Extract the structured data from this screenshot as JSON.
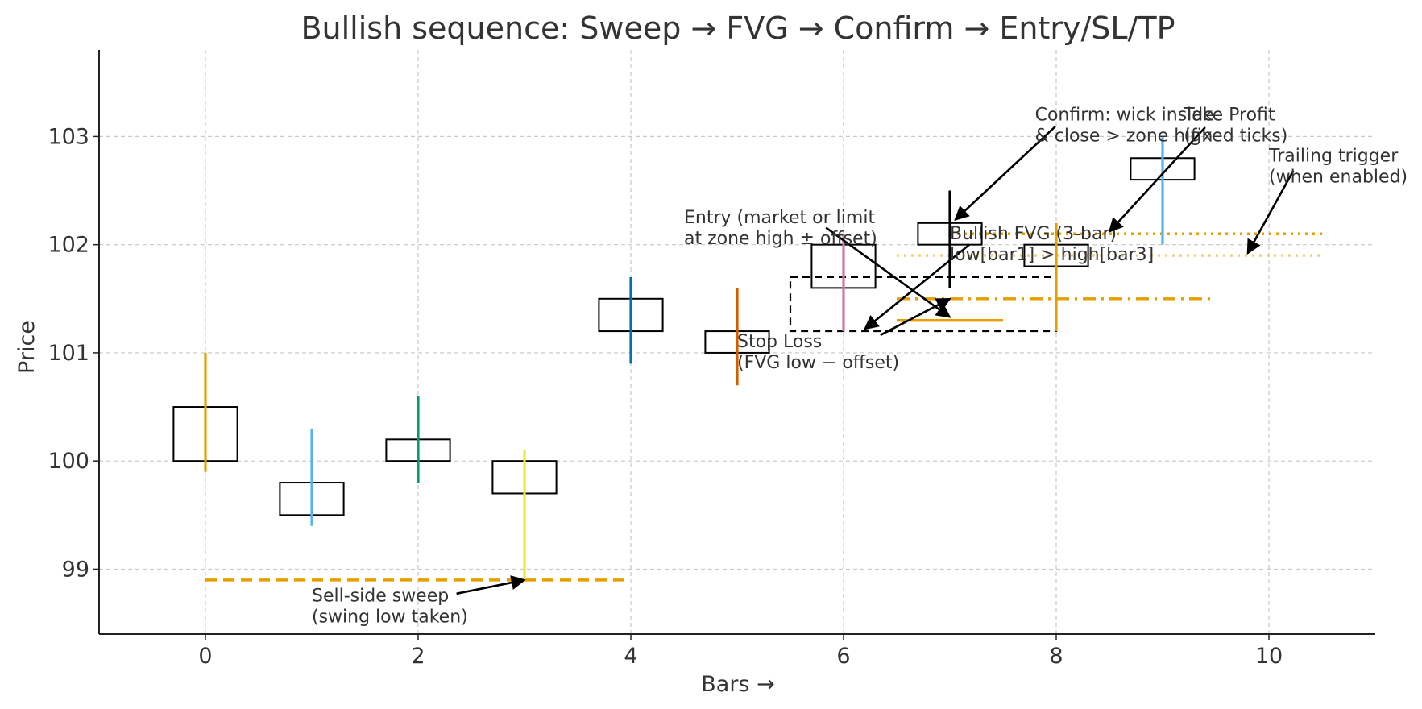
{
  "chart_data": {
    "type": "candlestick",
    "title": "Bullish sequence: Sweep → FVG → Confirm → Entry/SL/TP",
    "xlabel": "Bars →",
    "ylabel": "Price",
    "xlim": [
      -1,
      11
    ],
    "ylim": [
      98.4,
      103.8
    ],
    "xticks": [
      0,
      2,
      4,
      6,
      8,
      10
    ],
    "yticks": [
      99,
      100,
      101,
      102,
      103
    ],
    "grid": true,
    "candles": [
      {
        "x": 0,
        "open": 100.0,
        "close": 100.5,
        "low": 99.9,
        "high": 101.0,
        "wick_color": "#E69F00"
      },
      {
        "x": 1,
        "open": 99.5,
        "close": 99.8,
        "low": 99.4,
        "high": 100.3,
        "wick_color": "#56B4E9"
      },
      {
        "x": 2,
        "open": 100.0,
        "close": 100.2,
        "low": 99.8,
        "high": 100.6,
        "wick_color": "#009E73"
      },
      {
        "x": 3,
        "open": 100.0,
        "close": 99.7,
        "low": 98.9,
        "high": 100.1,
        "wick_color": "#F0E442"
      },
      {
        "x": 4,
        "open": 101.2,
        "close": 101.5,
        "low": 100.9,
        "high": 101.7,
        "wick_color": "#0072B2"
      },
      {
        "x": 5,
        "open": 101.0,
        "close": 101.2,
        "low": 100.7,
        "high": 101.6,
        "wick_color": "#D55E00"
      },
      {
        "x": 6,
        "open": 101.6,
        "close": 102.0,
        "low": 101.2,
        "high": 102.1,
        "wick_color": "#CC79A7"
      },
      {
        "x": 7,
        "open": 102.0,
        "close": 102.2,
        "low": 101.6,
        "high": 102.5,
        "wick_color": "#000000"
      },
      {
        "x": 8,
        "open": 101.8,
        "close": 102.0,
        "low": 101.2,
        "high": 102.2,
        "wick_color": "#E69F00"
      },
      {
        "x": 9,
        "open": 102.6,
        "close": 102.8,
        "low": 102.0,
        "high": 103.0,
        "wick_color": "#56B4E9"
      }
    ],
    "fvg_zone": {
      "x0": 5.5,
      "x1": 8.0,
      "y0": 101.2,
      "y1": 101.7
    },
    "lines": [
      {
        "name": "sweep",
        "x0": 0,
        "x1": 4,
        "y": 98.9,
        "style": "dashed",
        "color": "#E69F00",
        "alpha": 1
      },
      {
        "name": "entry",
        "x0": 6.5,
        "x1": 7.5,
        "y": 101.3,
        "style": "solid",
        "color": "#E69F00",
        "alpha": 1
      },
      {
        "name": "stop-loss",
        "x0": 6.5,
        "x1": 9.5,
        "y": 101.5,
        "style": "dashdot",
        "color": "#E69F00",
        "alpha": 1
      },
      {
        "name": "take-profit",
        "x0": 7.0,
        "x1": 10.5,
        "y": 102.1,
        "style": "dotted",
        "color": "#E69F00",
        "alpha": 1
      },
      {
        "name": "trailing-trigger",
        "x0": 6.5,
        "x1": 10.5,
        "y": 101.9,
        "style": "dotted",
        "color": "#E69F00",
        "alpha": 0.5
      }
    ],
    "annotations": [
      {
        "lines": [
          "Sell-side sweep",
          "(swing low taken)"
        ],
        "text_x": 1.0,
        "text_y": 98.7,
        "arrow_x": 3.0,
        "arrow_y": 98.9
      },
      {
        "lines": [
          "Bullish FVG (3-bar)",
          "low[bar1] > high[bar3]"
        ],
        "text_x": 7.0,
        "text_y": 102.05,
        "arrow_x": 6.2,
        "arrow_y": 101.22
      },
      {
        "lines": [
          "Confirm: wick inside",
          "& close > zone high"
        ],
        "text_x": 7.8,
        "text_y": 103.15,
        "arrow_x": 7.05,
        "arrow_y": 102.23
      },
      {
        "lines": [
          "Entry (market or limit",
          "at zone high ± offset)"
        ],
        "text_x": 4.5,
        "text_y": 102.2,
        "arrow_x": 7.0,
        "arrow_y": 101.33
      },
      {
        "lines": [
          "Stop Loss",
          "(FVG low − offset)"
        ],
        "text_x": 5.0,
        "text_y": 101.05,
        "arrow_x": 7.0,
        "arrow_y": 101.5
      },
      {
        "lines": [
          "Take Profit",
          "(fixed ticks)"
        ],
        "text_x": 9.2,
        "text_y": 103.15,
        "arrow_x": 8.5,
        "arrow_y": 102.12
      },
      {
        "lines": [
          "Trailing trigger",
          "(when enabled)"
        ],
        "text_x": 10.0,
        "text_y": 102.77,
        "arrow_x": 9.8,
        "arrow_y": 101.92
      }
    ]
  }
}
